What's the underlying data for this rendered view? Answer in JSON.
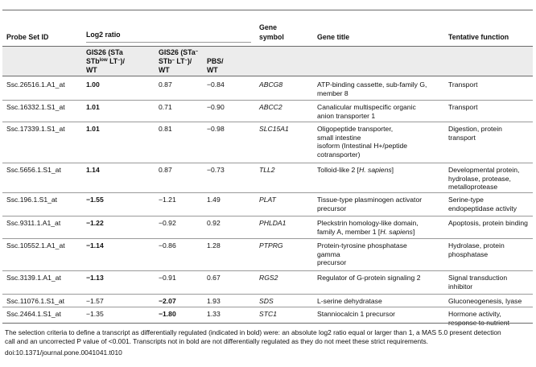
{
  "table": {
    "headers": {
      "probe": "Probe Set ID",
      "log2": "Log2 ratio",
      "gene_symbol": [
        "Gene",
        "symbol"
      ],
      "gene_title": "Gene title",
      "function": "Tentative function"
    },
    "subheaders": {
      "gis26a": [
        "GIS26 (STa",
        "STb",
        "low",
        " LT",
        "–",
        ")/",
        "WT"
      ],
      "gis26b": [
        "GIS26 (STa",
        "–",
        "STb",
        "–",
        " LT",
        "–",
        ")/",
        "WT"
      ],
      "pbs": [
        "PBS/",
        "WT"
      ]
    },
    "rows": [
      {
        "probe": "Ssc.26516.1.A1_at",
        "v1": "1.00",
        "v2": "0.87",
        "v3": "−0.84",
        "gene": "ABCG8",
        "title": [
          "ATP-binding cassette, sub-family G,",
          "member 8"
        ],
        "func": [
          "Transport"
        ],
        "bold": [
          1
        ]
      },
      {
        "probe": "Ssc.16332.1.S1_at",
        "v1": "1.01",
        "v2": "0.71",
        "v3": "−0.90",
        "gene": "ABCC2",
        "title": [
          "Canalicular multispecific organic",
          "anion transporter 1"
        ],
        "func": [
          "Transport"
        ],
        "bold": [
          1
        ]
      },
      {
        "probe": "Ssc.17339.1.S1_at",
        "v1": "1.01",
        "v2": "0.81",
        "v3": "−0.98",
        "gene": "SLC15A1",
        "title": [
          "Oligopeptide transporter,",
          "small intestine",
          "isoform (Intestinal H+/peptide",
          "cotransporter)"
        ],
        "func": [
          "Digestion, protein",
          "transport"
        ],
        "bold": [
          1
        ]
      },
      {
        "probe": "Ssc.5656.1.S1_at",
        "v1": "1.14",
        "v2": "0.87",
        "v3": "−0.73",
        "gene": "TLL2",
        "title": [
          "Tolloid-like 2 [H. sapiens]"
        ],
        "func": [
          "Developmental protein,",
          "hydrolase, protease,",
          "metalloprotease"
        ],
        "bold": [
          1
        ]
      },
      {
        "probe": "Ssc.196.1.S1_at",
        "v1": "−1.55",
        "v2": "−1.21",
        "v3": "1.49",
        "gene": "PLAT",
        "title": [
          "Tissue-type plasminogen activator",
          "precursor"
        ],
        "func": [
          "Serine-type",
          "endopeptidase activity"
        ],
        "bold": [
          1
        ]
      },
      {
        "probe": "Ssc.9311.1.A1_at",
        "v1": "−1.22",
        "v2": "−0.92",
        "v3": "0.92",
        "gene": "PHLDA1",
        "title": [
          "Pleckstrin homology-like domain,",
          "family A, member 1 [H. sapiens]"
        ],
        "func": [
          "Apoptosis, protein binding"
        ],
        "bold": [
          1
        ]
      },
      {
        "probe": "Ssc.10552.1.A1_at",
        "v1": "−1.14",
        "v2": "−0.86",
        "v3": "1.28",
        "gene": "PTPRG",
        "title": [
          "Protein-tyrosine phosphatase",
          "gamma",
          "precursor"
        ],
        "func": [
          "Hydrolase, protein",
          "phosphatase"
        ],
        "bold": [
          1
        ]
      },
      {
        "probe": "Ssc.3139.1.A1_at",
        "v1": "−1.13",
        "v2": "−0.91",
        "v3": "0.67",
        "gene": "RGS2",
        "title": [
          "Regulator of G-protein signaling 2"
        ],
        "func": [
          "Signal transduction",
          "inhibitor"
        ],
        "bold": [
          1
        ]
      },
      {
        "probe": "Ssc.11076.1.S1_at",
        "v1": "−1.57",
        "v2": "−2.07",
        "v3": "1.93",
        "gene": "SDS",
        "title": [
          "L-serine dehydratase"
        ],
        "func": [
          "Gluconeogenesis, lyase"
        ],
        "bold": [
          2
        ]
      },
      {
        "probe": "Ssc.2464.1.S1_at",
        "v1": "−1.35",
        "v2": "−1.80",
        "v3": "1.33",
        "gene": "STC1",
        "title": [
          "Stanniocalcin 1 precursor"
        ],
        "func": [
          "Hormone activity,",
          "response to nutrient"
        ],
        "bold": [
          2
        ]
      }
    ]
  },
  "footnote": [
    "The selection criteria to define a transcript as differentially regulated (indicated in bold) were: an absolute log2 ratio equal or larger than 1, a MAS 5.0 present detection",
    "call and an uncorrected P value of <0.001. Transcripts not in bold are not differentially regulated as they do not meet these strict requirements."
  ],
  "doi": "doi:10.1371/journal.pone.0041041.t010",
  "colors": {
    "rule": "#6b6b6b",
    "shade": "#ececec"
  }
}
